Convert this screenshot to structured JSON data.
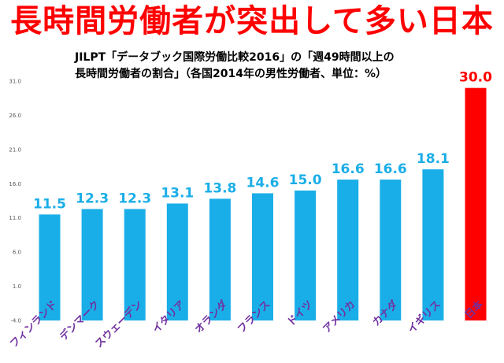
{
  "headline": "長時間労働者が突出して多い日本",
  "subtitle": {
    "line1": "JILPT「データブック国際労働比較2016」の「週49時間以上の",
    "line2": "長時間労働者の割合」（各国2014年の男性労働者、単位：%）"
  },
  "colors": {
    "bar": "#1aaee8",
    "highlight": "#ff0000",
    "label": "#1aaee8",
    "category": "#7030a0"
  },
  "chart_data": {
    "type": "bar",
    "categories": [
      "フィンランド",
      "デンマーク",
      "スウェーデン",
      "イタリア",
      "オランダ",
      "フランス",
      "ドイツ",
      "アメリカ",
      "カナダ",
      "イギリス",
      "日本"
    ],
    "values": [
      11.5,
      12.3,
      12.3,
      13.1,
      13.8,
      14.6,
      15.0,
      16.6,
      16.6,
      18.1,
      30.0
    ],
    "value_labels": [
      "11.5",
      "12.3",
      "12.3",
      "13.1",
      "13.8",
      "14.6",
      "15.0",
      "16.6",
      "16.6",
      "18.1",
      "30.0"
    ],
    "highlight_index": 10,
    "yticks": [
      31.0,
      26.0,
      21.0,
      16.0,
      11.0,
      6.0,
      1.0,
      -4.0
    ],
    "ytick_labels": [
      "31.0",
      "26.0",
      "21.0",
      "16.0",
      "11.0",
      "6.0",
      "1.0",
      "-4.0"
    ],
    "ylim": [
      -4,
      31
    ],
    "grid": false,
    "legend": "none",
    "title": "",
    "xlabel": "",
    "ylabel": ""
  }
}
